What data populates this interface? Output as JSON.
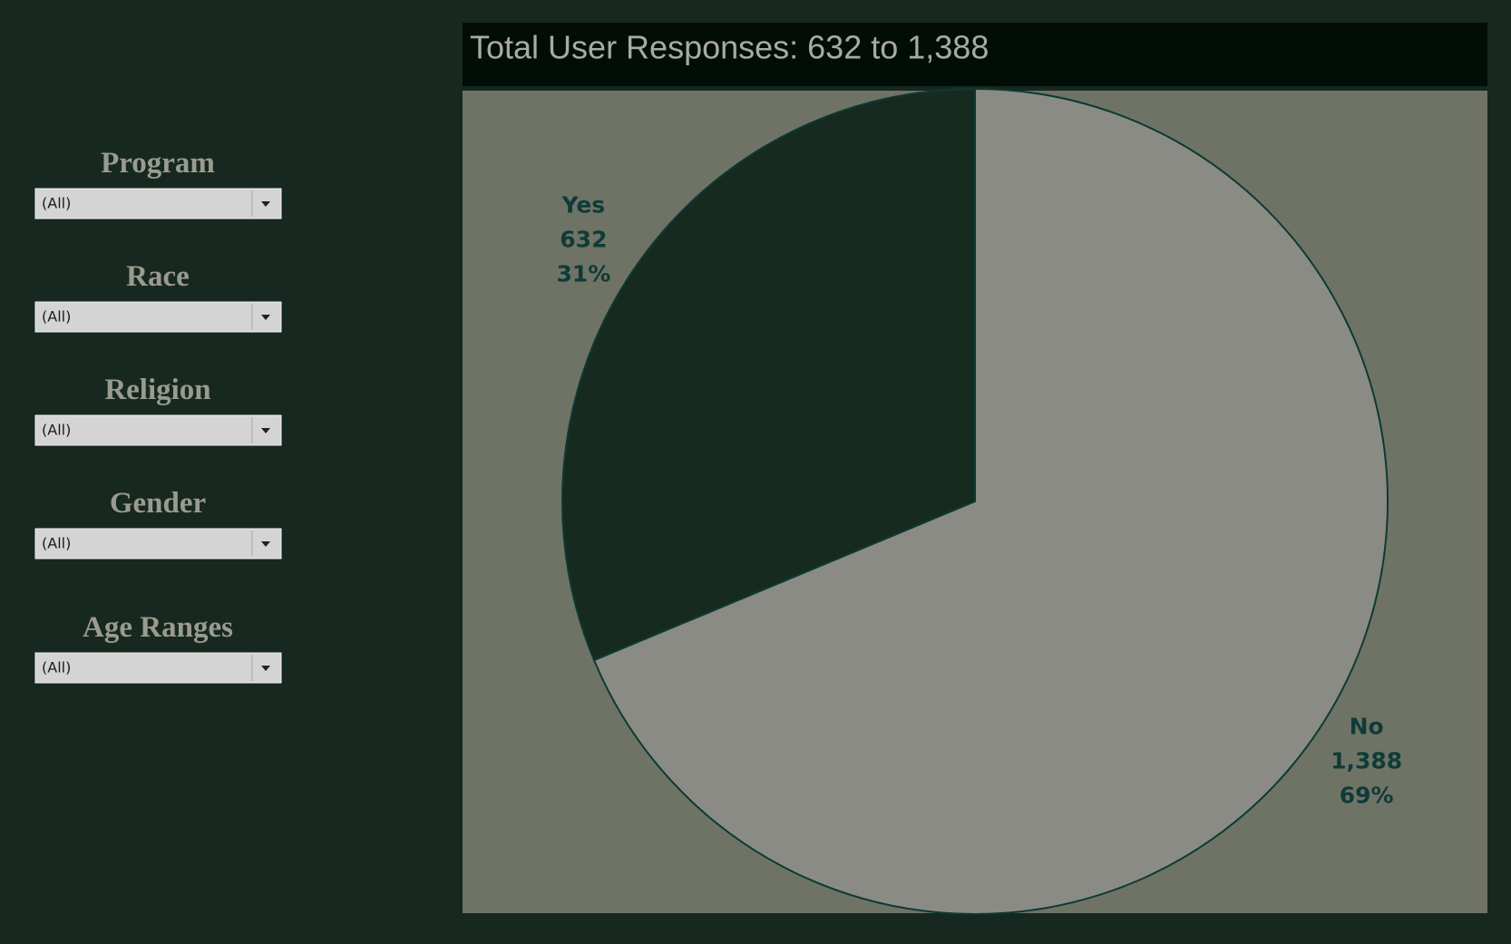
{
  "filters": [
    {
      "label": "Program",
      "value": "(All)"
    },
    {
      "label": "Race",
      "value": "(All)"
    },
    {
      "label": "Religion",
      "value": "(All)"
    },
    {
      "label": "Gender",
      "value": "(All)"
    },
    {
      "label": "Age Ranges",
      "value": "(All)"
    }
  ],
  "chart_data": {
    "type": "pie",
    "title": "Total User Responses: 632 to 1,388",
    "categories": [
      "Yes",
      "No"
    ],
    "values": [
      632,
      1388
    ],
    "value_labels": [
      "632",
      "1,388"
    ],
    "percent_labels": [
      "31%",
      "69%"
    ],
    "colors": [
      "#172a20",
      "#8b8b86"
    ]
  }
}
